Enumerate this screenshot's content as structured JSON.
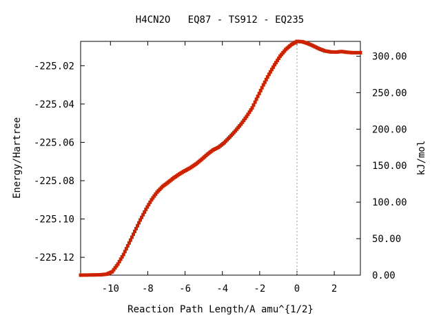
{
  "chart_data": {
    "type": "scatter",
    "title": "H4CN2O   EQ87 - TS912 - EQ235",
    "xlabel": "Reaction Path Length/A amu^{1/2}",
    "ylabel": "Energy/Hartree",
    "y2label": "kJ/mol",
    "xlim": [
      -11.6,
      3.4
    ],
    "ylim": [
      -225.1293,
      -225.0073
    ],
    "y2lim": [
      0.0,
      320.3
    ],
    "x_ticks": [
      -10,
      -8,
      -6,
      -4,
      -2,
      0,
      2
    ],
    "x_tick_labels": [
      "-10",
      "-8",
      "-6",
      "-4",
      "-2",
      "0",
      "2"
    ],
    "y_ticks": [
      -225.12,
      -225.1,
      -225.08,
      -225.06,
      -225.04,
      -225.02
    ],
    "y_tick_labels": [
      "-225.12",
      "-225.10",
      "-225.08",
      "-225.06",
      "-225.04",
      "-225.02"
    ],
    "y2_ticks": [
      0,
      50,
      100,
      150,
      200,
      250,
      300
    ],
    "y2_tick_labels": [
      "0.00",
      "50.00",
      "100.00",
      "150.00",
      "200.00",
      "250.00",
      "300.00"
    ],
    "ts_marker_x": 0.0,
    "legend": "none",
    "series": [
      {
        "color": "#cc2200",
        "line_color": "#2e8b2e",
        "points": [
          [
            -11.6,
            -225.1293
          ],
          [
            -11.0,
            -225.1292
          ],
          [
            -10.5,
            -225.1291
          ],
          [
            -10.2,
            -225.1288
          ],
          [
            -9.9,
            -225.1275
          ],
          [
            -9.6,
            -225.1235
          ],
          [
            -9.3,
            -225.1185
          ],
          [
            -9.0,
            -225.1125
          ],
          [
            -8.7,
            -225.1065
          ],
          [
            -8.4,
            -225.1005
          ],
          [
            -8.1,
            -225.095
          ],
          [
            -7.8,
            -225.09
          ],
          [
            -7.5,
            -225.086
          ],
          [
            -7.2,
            -225.083
          ],
          [
            -6.9,
            -225.0808
          ],
          [
            -6.6,
            -225.0785
          ],
          [
            -6.3,
            -225.0765
          ],
          [
            -6.0,
            -225.0748
          ],
          [
            -5.7,
            -225.0732
          ],
          [
            -5.4,
            -225.0712
          ],
          [
            -5.1,
            -225.0688
          ],
          [
            -4.8,
            -225.0662
          ],
          [
            -4.5,
            -225.064
          ],
          [
            -4.2,
            -225.0625
          ],
          [
            -3.9,
            -225.0602
          ],
          [
            -3.6,
            -225.0572
          ],
          [
            -3.3,
            -225.054
          ],
          [
            -3.0,
            -225.0505
          ],
          [
            -2.7,
            -225.0465
          ],
          [
            -2.4,
            -225.042
          ],
          [
            -2.1,
            -225.036
          ],
          [
            -1.8,
            -225.03
          ],
          [
            -1.5,
            -225.0245
          ],
          [
            -1.2,
            -225.0195
          ],
          [
            -0.9,
            -225.015
          ],
          [
            -0.6,
            -225.0115
          ],
          [
            -0.3,
            -225.009
          ],
          [
            0.0,
            -225.0073
          ],
          [
            0.3,
            -225.0075
          ],
          [
            0.6,
            -225.0085
          ],
          [
            0.9,
            -225.0098
          ],
          [
            1.2,
            -225.0112
          ],
          [
            1.5,
            -225.0123
          ],
          [
            1.8,
            -225.0128
          ],
          [
            2.1,
            -225.0129
          ],
          [
            2.4,
            -225.0126
          ],
          [
            2.7,
            -225.013
          ],
          [
            3.0,
            -225.0132
          ],
          [
            3.4,
            -225.0132
          ]
        ]
      }
    ]
  }
}
